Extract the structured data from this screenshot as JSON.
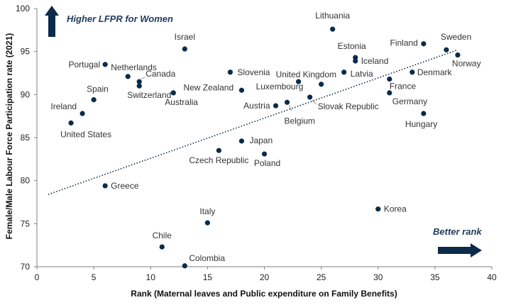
{
  "chart_data": {
    "type": "scatter",
    "xlabel": "Rank (Maternal leaves and Public expenditure on Family Benefits)",
    "ylabel": "Female/Male Labour Force Participation rate (2021)",
    "xlim": [
      0,
      40
    ],
    "ylim": [
      70,
      100
    ],
    "xticks": [
      0,
      5,
      10,
      15,
      20,
      25,
      30,
      35,
      40
    ],
    "yticks": [
      70,
      75,
      80,
      85,
      90,
      95,
      100
    ],
    "grid": false,
    "colors": {
      "point": "#0c2b4b",
      "axis": "#808080",
      "arrow": "#0c2b4b",
      "annotation": "#1f3b5c",
      "label": "#333333"
    },
    "annotations": {
      "vertical_arrow": "Higher LFPR for Women",
      "horizontal_arrow": "Better rank"
    },
    "trendline": {
      "style": "dotted",
      "x": [
        1,
        37
      ],
      "y": [
        78.4,
        95.2
      ]
    },
    "points": [
      {
        "label": "Lithuania",
        "x": 26,
        "y": 97.6
      },
      {
        "label": "Israel",
        "x": 13,
        "y": 95.3
      },
      {
        "label": "Estonia",
        "x": 28,
        "y": 94.3
      },
      {
        "label": "Finland",
        "x": 34,
        "y": 95.9
      },
      {
        "label": "Sweden",
        "x": 36,
        "y": 95.2
      },
      {
        "label": "Norway",
        "x": 37,
        "y": 94.6
      },
      {
        "label": "Iceland",
        "x": 28,
        "y": 93.9
      },
      {
        "label": "Portugal",
        "x": 6,
        "y": 93.5
      },
      {
        "label": "Netherlands",
        "x": 8,
        "y": 92.1
      },
      {
        "label": "Canada",
        "x": 9,
        "y": 91.5
      },
      {
        "label": "Switzerland",
        "x": 9,
        "y": 91.0
      },
      {
        "label": "Slovenia",
        "x": 17,
        "y": 92.6
      },
      {
        "label": "United Kingdom",
        "x": 25,
        "y": 91.2
      },
      {
        "label": "Latvia",
        "x": 27,
        "y": 92.6
      },
      {
        "label": "Denmark",
        "x": 33,
        "y": 92.6
      },
      {
        "label": "France",
        "x": 31,
        "y": 91.8
      },
      {
        "label": "Luxembourg",
        "x": 23,
        "y": 91.5
      },
      {
        "label": "New Zealand",
        "x": 18,
        "y": 90.5
      },
      {
        "label": "Australia",
        "x": 12,
        "y": 90.2
      },
      {
        "label": "Spain",
        "x": 5,
        "y": 89.4
      },
      {
        "label": "Germany",
        "x": 31,
        "y": 90.2
      },
      {
        "label": "Slovak Republic",
        "x": 24,
        "y": 89.7
      },
      {
        "label": "Austria",
        "x": 21,
        "y": 88.7
      },
      {
        "label": "Belgium",
        "x": 22,
        "y": 89.1
      },
      {
        "label": "Ireland",
        "x": 4,
        "y": 87.8
      },
      {
        "label": "Hungary",
        "x": 34,
        "y": 87.8
      },
      {
        "label": "United States",
        "x": 3,
        "y": 86.7
      },
      {
        "label": "Japan",
        "x": 18,
        "y": 84.6
      },
      {
        "label": "Czech Republic",
        "x": 16,
        "y": 83.5
      },
      {
        "label": "Poland",
        "x": 20,
        "y": 83.1
      },
      {
        "label": "Greece",
        "x": 6,
        "y": 79.4
      },
      {
        "label": "Korea",
        "x": 30,
        "y": 76.7
      },
      {
        "label": "Italy",
        "x": 15,
        "y": 75.1
      },
      {
        "label": "Chile",
        "x": 11,
        "y": 72.3
      },
      {
        "label": "Colombia",
        "x": 13,
        "y": 70.1
      }
    ]
  }
}
